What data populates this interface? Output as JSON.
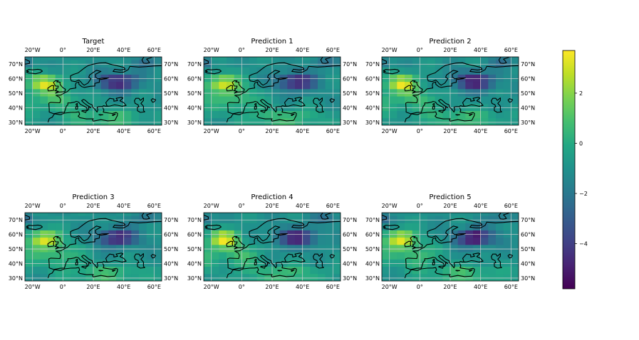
{
  "figure": {
    "layout": "2x3 grid of maps with shared colorbar"
  },
  "chart_data": [
    {
      "type": "heatmap",
      "title": "Target",
      "variant": 0
    },
    {
      "type": "heatmap",
      "title": "Prediction 1",
      "variant": 1
    },
    {
      "type": "heatmap",
      "title": "Prediction 2",
      "variant": 2
    },
    {
      "type": "heatmap",
      "title": "Prediction 3",
      "variant": 3
    },
    {
      "type": "heatmap",
      "title": "Prediction 4",
      "variant": 4
    },
    {
      "type": "heatmap",
      "title": "Prediction 5",
      "variant": 5
    }
  ],
  "map": {
    "lon_range": [
      -25,
      65
    ],
    "lat_range": [
      28,
      75
    ],
    "lon_ticks": [
      -20,
      0,
      20,
      40,
      60
    ],
    "lon_tick_labels": [
      "20°W",
      "0°",
      "20°E",
      "40°E",
      "60°E"
    ],
    "lat_ticks": [
      30,
      40,
      50,
      60,
      70
    ],
    "lat_tick_labels": [
      "30°N",
      "40°N",
      "50°N",
      "60°N",
      "70°N"
    ],
    "grid": true,
    "coastlines": true
  },
  "colorbar": {
    "colormap": "viridis",
    "range": [
      -5.8,
      3.7
    ],
    "ticks": [
      2,
      0,
      -2,
      -4
    ],
    "tick_labels": [
      "2",
      "0",
      "−2",
      "−4"
    ]
  }
}
